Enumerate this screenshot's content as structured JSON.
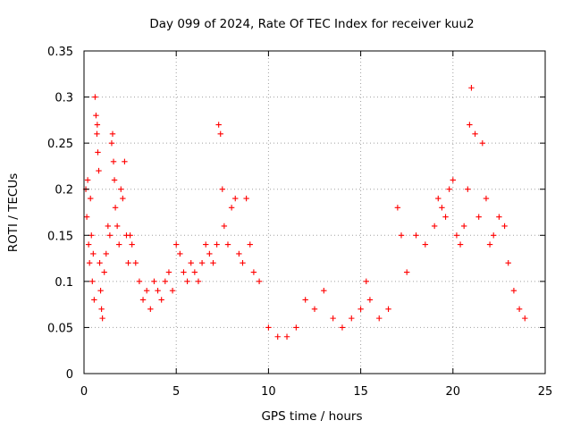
{
  "chart_data": {
    "type": "scatter",
    "title": "Day 099 of 2024, Rate Of TEC Index for receiver kuu2",
    "xlabel": "GPS time / hours",
    "ylabel": "ROTI / TECUs",
    "xlim": [
      0,
      25
    ],
    "ylim": [
      0,
      0.35
    ],
    "xticks": [
      "0",
      "5",
      "10",
      "15",
      "20",
      "25"
    ],
    "yticks": [
      "0",
      "0.05",
      "0.1",
      "0.15",
      "0.2",
      "0.25",
      "0.3",
      "0.35"
    ],
    "grid": true,
    "legend": "none",
    "marker": "+",
    "color": "#ff0000",
    "series": [
      {
        "x": [
          0.1,
          0.15,
          0.2,
          0.25,
          0.3,
          0.35,
          0.4,
          0.45,
          0.5,
          0.55,
          0.6,
          0.65,
          0.7,
          0.72,
          0.75,
          0.8,
          0.85,
          0.9,
          0.95,
          1.0,
          1.1,
          1.2,
          1.3,
          1.4,
          1.5,
          1.55,
          1.6,
          1.65,
          1.7,
          1.8,
          1.9,
          2.0,
          2.1,
          2.2,
          2.3,
          2.4,
          2.5,
          2.6,
          2.8,
          3.0,
          3.2,
          3.4,
          3.6,
          3.8,
          4.0,
          4.2,
          4.4,
          4.6,
          4.8,
          5.0,
          5.2,
          5.4,
          5.6,
          5.8,
          6.0,
          6.2,
          6.4,
          6.6,
          6.8,
          7.0,
          7.2,
          7.3,
          7.4,
          7.5,
          7.6,
          7.8,
          8.0,
          8.2,
          8.4,
          8.6,
          8.8,
          9.0,
          9.2,
          9.5,
          10.0,
          10.5,
          11.0,
          11.5,
          12.0,
          12.5,
          13.0,
          13.5,
          14.0,
          14.5,
          15.0,
          15.3,
          15.5,
          16.0,
          16.5,
          17.0,
          17.2,
          17.5,
          18.0,
          18.5,
          19.0,
          19.2,
          19.4,
          19.6,
          19.8,
          20.0,
          20.2,
          20.4,
          20.6,
          20.8,
          20.9,
          21.0,
          21.2,
          21.4,
          21.6,
          21.8,
          22.0,
          22.2,
          22.5,
          22.8,
          23.0,
          23.3,
          23.6,
          23.9
        ],
        "y": [
          0.2,
          0.17,
          0.21,
          0.14,
          0.12,
          0.19,
          0.15,
          0.1,
          0.13,
          0.08,
          0.3,
          0.28,
          0.26,
          0.27,
          0.24,
          0.22,
          0.12,
          0.09,
          0.07,
          0.06,
          0.11,
          0.13,
          0.16,
          0.15,
          0.25,
          0.26,
          0.23,
          0.21,
          0.18,
          0.16,
          0.14,
          0.2,
          0.19,
          0.23,
          0.15,
          0.12,
          0.15,
          0.14,
          0.12,
          0.1,
          0.08,
          0.09,
          0.07,
          0.1,
          0.09,
          0.08,
          0.1,
          0.11,
          0.09,
          0.14,
          0.13,
          0.11,
          0.1,
          0.12,
          0.11,
          0.1,
          0.12,
          0.14,
          0.13,
          0.12,
          0.14,
          0.27,
          0.26,
          0.2,
          0.16,
          0.14,
          0.18,
          0.19,
          0.13,
          0.12,
          0.19,
          0.14,
          0.11,
          0.1,
          0.05,
          0.04,
          0.04,
          0.05,
          0.08,
          0.07,
          0.09,
          0.06,
          0.05,
          0.06,
          0.07,
          0.1,
          0.08,
          0.06,
          0.07,
          0.18,
          0.15,
          0.11,
          0.15,
          0.14,
          0.16,
          0.19,
          0.18,
          0.17,
          0.2,
          0.21,
          0.15,
          0.14,
          0.16,
          0.2,
          0.27,
          0.31,
          0.26,
          0.17,
          0.25,
          0.19,
          0.14,
          0.15,
          0.17,
          0.16,
          0.12,
          0.09,
          0.07,
          0.06
        ]
      }
    ]
  }
}
